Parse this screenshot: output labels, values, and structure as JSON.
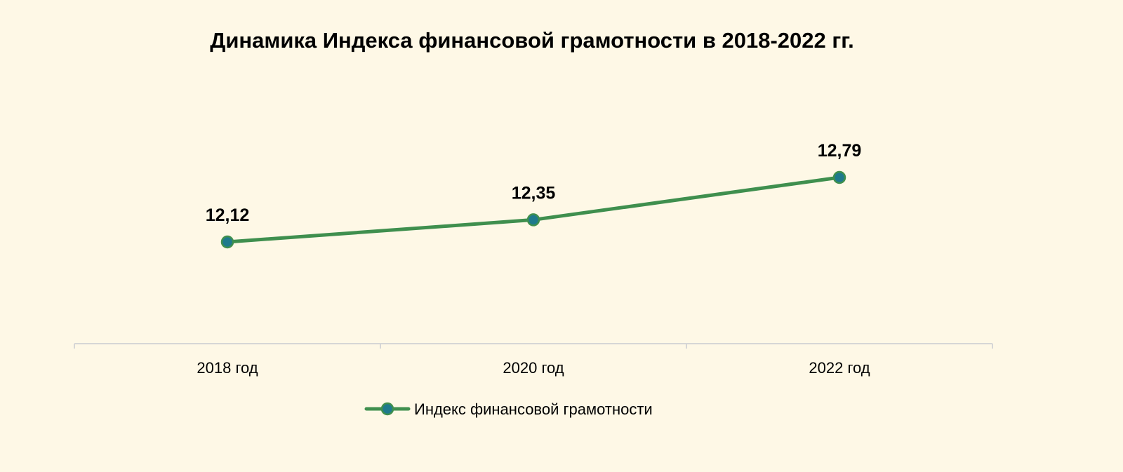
{
  "chart_data": {
    "type": "line",
    "title": "Динамика Индекса финансовой грамотности в 2018-2022 гг.",
    "xlabel": "",
    "ylabel": "",
    "categories": [
      "2018 год",
      "2020 год",
      "2022 год"
    ],
    "series": [
      {
        "name": "Индекс финансовой грамотности",
        "values": [
          12.12,
          12.35,
          12.79
        ],
        "labels": [
          "12,12",
          "12,35",
          "12,79"
        ]
      }
    ],
    "grid": false,
    "legend_position": "bottom",
    "colors": {
      "background": "#FEF8E6",
      "line": "#3F8F4E",
      "marker_fill": "#1E7A8C",
      "axis": "#D6D6D6"
    }
  }
}
